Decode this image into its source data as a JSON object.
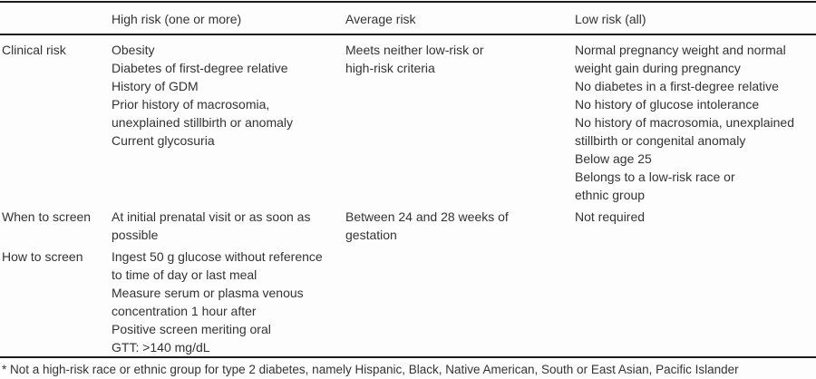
{
  "page": {
    "background": "#fdfdfd",
    "text_color": "#333333",
    "rule_color": "#1c1c1c"
  },
  "table": {
    "columns": [
      "",
      "High risk (one or more)",
      "Average risk",
      "Low risk (all)"
    ],
    "rows": [
      {
        "label": "Clinical risk",
        "high": "Obesity\nDiabetes of first-degree relative\nHistory of GDM\nPrior history of macrosomia,\nunexplained stillbirth or anomaly\nCurrent glycosuria",
        "average": "Meets neither low-risk or\nhigh-risk criteria",
        "low": "Normal pregnancy weight and normal\nweight gain during pregnancy\nNo diabetes in a first-degree relative\nNo history of glucose intolerance\nNo history of macrosomia, unexplained\nstillbirth or congenital anomaly\nBelow age 25\nBelongs to a low-risk race or\nethnic group"
      },
      {
        "label": "When to screen",
        "high": "At initial prenatal visit or as soon as\npossible",
        "average": "Between 24 and 28 weeks of\ngestation",
        "low": "Not required"
      },
      {
        "label": "How to screen",
        "high": "Ingest 50 g glucose without reference\nto time of day or last meal\nMeasure serum or plasma venous\nconcentration 1 hour after\nPositive screen meriting oral\nGTT: >140 mg/dL",
        "average": "",
        "low": ""
      }
    ],
    "footnote": "* Not a high-risk race or ethnic group for type 2 diabetes, namely Hispanic, Black, Native American, South or East Asian, Pacific Islander"
  }
}
